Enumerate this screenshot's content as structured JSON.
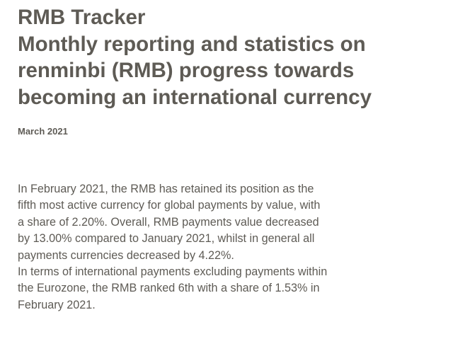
{
  "title": {
    "lines": [
      "RMB Tracker",
      "Monthly reporting and statistics on",
      "renminbi (RMB) progress towards",
      "becoming an international currency"
    ]
  },
  "date": "March 2021",
  "paragraphs": [
    {
      "lines": [
        "In February 2021, the RMB has retained its position as the",
        "fifth most active currency for global payments by value, with",
        "a share of 2.20%. Overall, RMB payments value decreased",
        "by 13.00% compared to January 2021, whilst in general all",
        "payments currencies decreased by 4.22%."
      ]
    },
    {
      "lines": [
        "In terms of international payments excluding payments within",
        "the Eurozone, the RMB ranked 6th with a share of 1.53% in",
        "February 2021."
      ]
    }
  ]
}
